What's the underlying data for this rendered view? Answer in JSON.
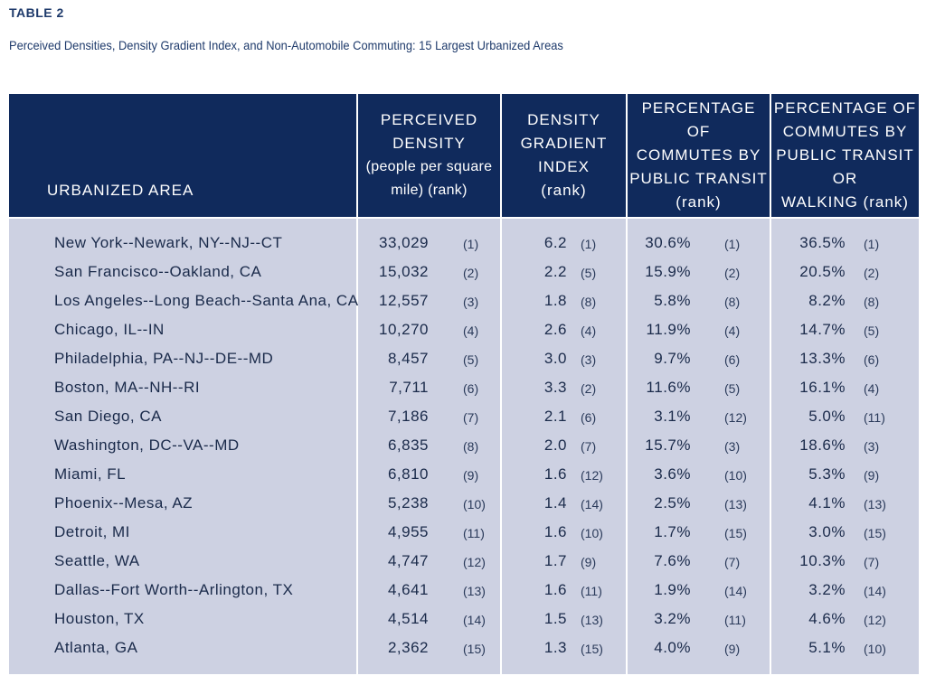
{
  "table_label": "TABLE 2",
  "caption": "Perceived Densities, Density Gradient Index, and Non-Automobile Commuting: 15 Largest Urbanized Areas",
  "headers": {
    "area": "URBANIZED AREA",
    "density_main": "PERCEIVED\nDENSITY",
    "density_sub": "(people per square\nmile) (rank)",
    "gradient": "DENSITY\nGRADIENT\nINDEX\n(rank)",
    "transit": "PERCENTAGE OF\nCOMMUTES BY\nPUBLIC TRANSIT\n(rank)",
    "walking": "PERCENTAGE OF\nCOMMUTES BY\nPUBLIC TRANSIT OR\nWALKING (rank)"
  },
  "rows": [
    {
      "area": "New York--Newark, NY--NJ--CT",
      "density": "33,029",
      "density_rank": "(1)",
      "gradient": "6.2",
      "gradient_rank": "(1)",
      "transit": "30.6%",
      "transit_rank": "(1)",
      "walking": "36.5%",
      "walking_rank": "(1)"
    },
    {
      "area": "San Francisco--Oakland, CA",
      "density": "15,032",
      "density_rank": "(2)",
      "gradient": "2.2",
      "gradient_rank": "(5)",
      "transit": "15.9%",
      "transit_rank": "(2)",
      "walking": "20.5%",
      "walking_rank": "(2)"
    },
    {
      "area": "Los Angeles--Long Beach--Santa Ana, CA",
      "density": "12,557",
      "density_rank": "(3)",
      "gradient": "1.8",
      "gradient_rank": "(8)",
      "transit": "5.8%",
      "transit_rank": "(8)",
      "walking": "8.2%",
      "walking_rank": "(8)"
    },
    {
      "area": "Chicago, IL--IN",
      "density": "10,270",
      "density_rank": "(4)",
      "gradient": "2.6",
      "gradient_rank": "(4)",
      "transit": "11.9%",
      "transit_rank": "(4)",
      "walking": "14.7%",
      "walking_rank": "(5)"
    },
    {
      "area": "Philadelphia, PA--NJ--DE--MD",
      "density": "8,457",
      "density_rank": "(5)",
      "gradient": "3.0",
      "gradient_rank": "(3)",
      "transit": "9.7%",
      "transit_rank": "(6)",
      "walking": "13.3%",
      "walking_rank": "(6)"
    },
    {
      "area": "Boston, MA--NH--RI",
      "density": "7,711",
      "density_rank": "(6)",
      "gradient": "3.3",
      "gradient_rank": "(2)",
      "transit": "11.6%",
      "transit_rank": "(5)",
      "walking": "16.1%",
      "walking_rank": "(4)"
    },
    {
      "area": "San Diego, CA",
      "density": "7,186",
      "density_rank": "(7)",
      "gradient": "2.1",
      "gradient_rank": "(6)",
      "transit": "3.1%",
      "transit_rank": "(12)",
      "walking": "5.0%",
      "walking_rank": "(11)"
    },
    {
      "area": "Washington, DC--VA--MD",
      "density": "6,835",
      "density_rank": "(8)",
      "gradient": "2.0",
      "gradient_rank": "(7)",
      "transit": "15.7%",
      "transit_rank": "(3)",
      "walking": "18.6%",
      "walking_rank": "(3)"
    },
    {
      "area": "Miami, FL",
      "density": "6,810",
      "density_rank": "(9)",
      "gradient": "1.6",
      "gradient_rank": "(12)",
      "transit": "3.6%",
      "transit_rank": "(10)",
      "walking": "5.3%",
      "walking_rank": "(9)"
    },
    {
      "area": "Phoenix--Mesa, AZ",
      "density": "5,238",
      "density_rank": "(10)",
      "gradient": "1.4",
      "gradient_rank": "(14)",
      "transit": "2.5%",
      "transit_rank": "(13)",
      "walking": "4.1%",
      "walking_rank": "(13)"
    },
    {
      "area": "Detroit, MI",
      "density": "4,955",
      "density_rank": "(11)",
      "gradient": "1.6",
      "gradient_rank": "(10)",
      "transit": "1.7%",
      "transit_rank": "(15)",
      "walking": "3.0%",
      "walking_rank": "(15)"
    },
    {
      "area": "Seattle, WA",
      "density": "4,747",
      "density_rank": "(12)",
      "gradient": "1.7",
      "gradient_rank": "(9)",
      "transit": "7.6%",
      "transit_rank": "(7)",
      "walking": "10.3%",
      "walking_rank": "(7)"
    },
    {
      "area": "Dallas--Fort Worth--Arlington, TX",
      "density": "4,641",
      "density_rank": "(13)",
      "gradient": "1.6",
      "gradient_rank": "(11)",
      "transit": "1.9%",
      "transit_rank": "(14)",
      "walking": "3.2%",
      "walking_rank": "(14)"
    },
    {
      "area": "Houston, TX",
      "density": "4,514",
      "density_rank": "(14)",
      "gradient": "1.5",
      "gradient_rank": "(13)",
      "transit": "3.2%",
      "transit_rank": "(11)",
      "walking": "4.6%",
      "walking_rank": "(12)"
    },
    {
      "area": "Atlanta, GA",
      "density": "2,362",
      "density_rank": "(15)",
      "gradient": "1.3",
      "gradient_rank": "(15)",
      "transit": "4.0%",
      "transit_rank": "(9)",
      "walking": "5.1%",
      "walking_rank": "(10)"
    }
  ]
}
